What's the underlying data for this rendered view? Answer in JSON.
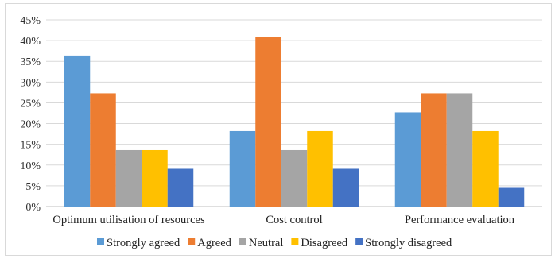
{
  "chart_data": {
    "type": "bar",
    "categories": [
      "Optimum utilisation of resources",
      "Cost control",
      "Performance evaluation"
    ],
    "series": [
      {
        "name": "Strongly agreed",
        "color": "#5b9bd5",
        "values": [
          36.4,
          18.2,
          22.7
        ]
      },
      {
        "name": "Agreed",
        "color": "#ed7d31",
        "values": [
          27.3,
          40.9,
          27.3
        ]
      },
      {
        "name": "Neutral",
        "color": "#a5a5a5",
        "values": [
          13.6,
          13.6,
          27.3
        ]
      },
      {
        "name": "Disagreed",
        "color": "#ffc000",
        "values": [
          13.6,
          18.2,
          18.2
        ]
      },
      {
        "name": "Strongly disagreed",
        "color": "#4472c4",
        "values": [
          9.1,
          9.1,
          4.5
        ]
      }
    ],
    "yticks": [
      "0%",
      "5%",
      "10%",
      "15%",
      "20%",
      "25%",
      "30%",
      "35%",
      "40%",
      "45%"
    ],
    "ylim": [
      0,
      45
    ],
    "grid": true,
    "legend": "bottom"
  }
}
